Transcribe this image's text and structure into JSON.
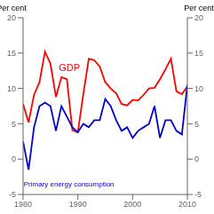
{
  "chart_data": {
    "type": "line",
    "ylabel": "Per cent",
    "y2label": "Per cent",
    "x": [
      1980,
      1981,
      1982,
      1983,
      1984,
      1985,
      1986,
      1987,
      1988,
      1989,
      1990,
      1991,
      1992,
      1993,
      1994,
      1995,
      1996,
      1997,
      1998,
      1999,
      2000,
      2001,
      2002,
      2003,
      2004,
      2005,
      2006,
      2007,
      2008,
      2009,
      2010
    ],
    "series": [
      {
        "name": "GDP",
        "color": "#ff0000",
        "values": [
          7.8,
          5.2,
          9.1,
          10.9,
          15.2,
          13.5,
          8.8,
          11.6,
          11.3,
          4.1,
          3.8,
          9.2,
          14.2,
          14.0,
          13.1,
          10.9,
          10.0,
          9.3,
          7.8,
          7.6,
          8.4,
          8.3,
          9.1,
          10.0,
          10.1,
          11.3,
          12.7,
          14.2,
          9.6,
          9.2,
          10.3
        ]
      },
      {
        "name": "Primary energy consumption",
        "color": "#0000cc",
        "values": [
          2.5,
          -1.5,
          4.5,
          7.5,
          8.0,
          7.5,
          4.0,
          7.5,
          6.0,
          4.5,
          3.8,
          5.0,
          4.5,
          5.5,
          5.5,
          8.5,
          7.5,
          5.5,
          4.0,
          4.5,
          3.0,
          4.0,
          4.5,
          5.0,
          7.5,
          3.0,
          5.5,
          5.5,
          4.0,
          3.5,
          10.5
        ]
      }
    ],
    "xlim": [
      1980,
      2010
    ],
    "xticks": [
      1980,
      1990,
      2000,
      2010
    ],
    "ylim": [
      -5,
      20
    ],
    "yticks": [
      -5,
      0,
      5,
      10,
      15,
      20
    ],
    "y2lim": [
      -5,
      20
    ],
    "y2ticks": [
      -5,
      0,
      5,
      10,
      15,
      20
    ],
    "grid": false
  }
}
